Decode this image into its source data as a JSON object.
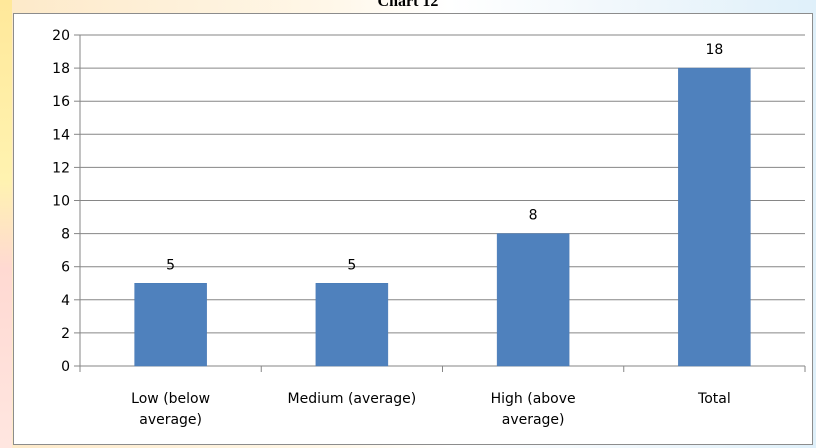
{
  "chart_data": {
    "type": "bar",
    "title": "Chart 12",
    "xlabel": "",
    "ylabel": "",
    "categories": [
      [
        "Low (below",
        "average)"
      ],
      [
        "Medium (average)"
      ],
      [
        "High (above",
        "average)"
      ],
      [
        "Total"
      ]
    ],
    "values": [
      5,
      5,
      8,
      18
    ],
    "data_labels": [
      "5",
      "5",
      "8",
      "18"
    ],
    "ylim": [
      0,
      20
    ],
    "yticks": [
      0,
      2,
      4,
      6,
      8,
      10,
      12,
      14,
      16,
      18,
      20
    ],
    "grid": true,
    "legend": "none",
    "bar_color": "#4f81bd"
  }
}
